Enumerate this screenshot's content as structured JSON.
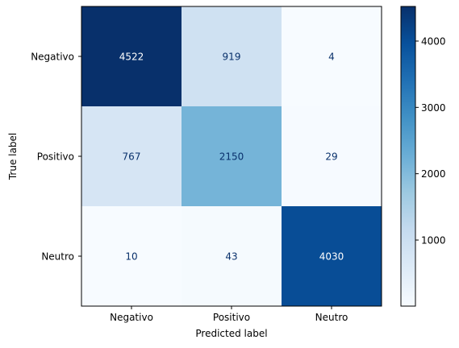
{
  "chart_data": {
    "type": "heatmap",
    "colormap": "Blues",
    "x_categories": [
      "Negativo",
      "Positivo",
      "Neutro"
    ],
    "y_categories": [
      "Negativo",
      "Positivo",
      "Neutro"
    ],
    "values": [
      [
        4522,
        919,
        4
      ],
      [
        767,
        2150,
        29
      ],
      [
        10,
        43,
        4030
      ]
    ],
    "xlabel": "Predicted label",
    "ylabel": "True label",
    "value_range": [
      4,
      4522
    ],
    "colorbar": {
      "ticks": [
        1000,
        2000,
        3000,
        4000
      ],
      "tick_labels": [
        "1000",
        "2000",
        "3000",
        "4000"
      ]
    },
    "colors": {
      "light_text": "#ffffff",
      "dark_text": "#08306b"
    }
  }
}
